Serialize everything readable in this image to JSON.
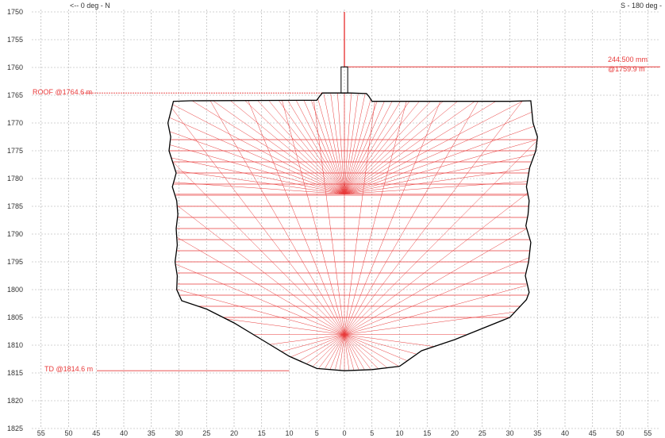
{
  "header": {
    "left_direction": "<-- 0 deg - N",
    "right_direction": "S - 180 deg -"
  },
  "colors": {
    "grid": "#a8a8a8",
    "outline": "#000000",
    "scan": "#e83a3a",
    "text": "#333333"
  },
  "chart_data": {
    "type": "scatter",
    "y_ticks": [
      "1750",
      "1755",
      "1760",
      "1765",
      "1770",
      "1775",
      "1780",
      "1785",
      "1790",
      "1795",
      "1800",
      "1805",
      "1810",
      "1815",
      "1820",
      "1825"
    ],
    "x_ticks": [
      "55",
      "50",
      "45",
      "40",
      "35",
      "30",
      "25",
      "20",
      "15",
      "10",
      "5",
      "0",
      "5",
      "10",
      "15",
      "20",
      "25",
      "30",
      "35",
      "40",
      "45",
      "50",
      "55"
    ],
    "xlim": [
      -57,
      57
    ],
    "ylim": [
      1750,
      1826
    ],
    "grid": true,
    "annotations": {
      "casing_label_1": "244.500 mm",
      "casing_label_2": "@1759.9 m",
      "casing_depth": 1759.9,
      "roof_label": "ROOF @1764.6 m",
      "roof_depth": 1764.6,
      "td_label": "TD @1814.6 m",
      "td_depth": 1814.6
    },
    "scan_origins": [
      {
        "x": 0,
        "depth": 1782.8
      },
      {
        "x": 0,
        "depth": 1808.1
      }
    ],
    "horizontal_scan_depths": [
      1773,
      1775,
      1777,
      1779,
      1781,
      1783,
      1785,
      1787,
      1789,
      1791,
      1793,
      1795,
      1797,
      1799,
      1801,
      1803,
      1805
    ],
    "outline": [
      [
        -1,
        1764.6
      ],
      [
        -4,
        1764.6
      ],
      [
        -4.5,
        1765.2
      ],
      [
        -5,
        1765.9
      ],
      [
        -28,
        1766.0
      ],
      [
        -31,
        1766.1
      ],
      [
        -32,
        1770.0
      ],
      [
        -31.5,
        1772.5
      ],
      [
        -31.8,
        1775.0
      ],
      [
        -30.5,
        1779.0
      ],
      [
        -31.2,
        1781.5
      ],
      [
        -30.4,
        1784.0
      ],
      [
        -30.2,
        1786.5
      ],
      [
        -30.5,
        1789.0
      ],
      [
        -30.3,
        1792.0
      ],
      [
        -30.7,
        1795.0
      ],
      [
        -30.3,
        1797.5
      ],
      [
        -30.4,
        1800.0
      ],
      [
        -29.5,
        1802.0
      ],
      [
        -25,
        1803.5
      ],
      [
        -20,
        1806.0
      ],
      [
        -15,
        1809.0
      ],
      [
        -10,
        1812.0
      ],
      [
        -5,
        1814.2
      ],
      [
        0,
        1814.6
      ],
      [
        5,
        1814.4
      ],
      [
        10,
        1813.8
      ],
      [
        14,
        1811.0
      ],
      [
        20,
        1809.0
      ],
      [
        30,
        1805.0
      ],
      [
        33,
        1801.8
      ],
      [
        33.5,
        1800.5
      ],
      [
        32.8,
        1797.5
      ],
      [
        33.4,
        1795.0
      ],
      [
        33.8,
        1791.5
      ],
      [
        32.9,
        1788.5
      ],
      [
        33.3,
        1786.5
      ],
      [
        33.5,
        1784.0
      ],
      [
        33.0,
        1781.5
      ],
      [
        33.6,
        1778.0
      ],
      [
        34.7,
        1775.0
      ],
      [
        35.0,
        1772.5
      ],
      [
        34.2,
        1770.0
      ],
      [
        33.8,
        1766.0
      ],
      [
        30,
        1766.1
      ],
      [
        5,
        1766.1
      ],
      [
        4.5,
        1765.3
      ],
      [
        4,
        1764.7
      ],
      [
        1,
        1764.6
      ]
    ]
  }
}
